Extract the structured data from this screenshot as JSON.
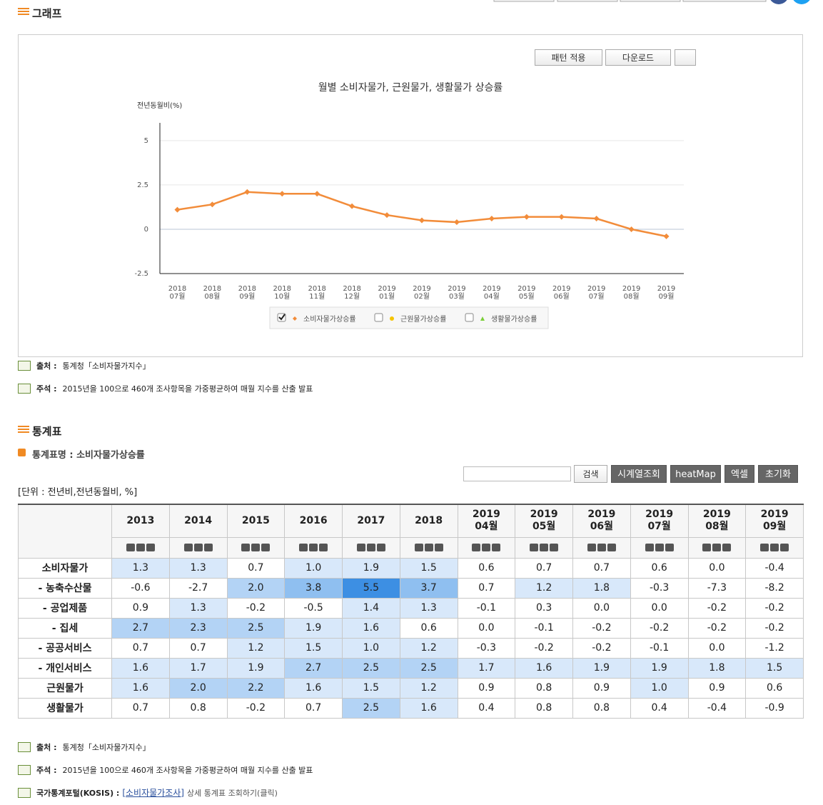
{
  "graph": {
    "title": "그래프",
    "buttons": [
      "패턴 적용",
      "다운로드"
    ],
    "chart_data": {
      "type": "line",
      "title": "월별 소비자물가, 근원물가, 생활물가 상승률",
      "y_label": "전년동월비(%)",
      "categories": [
        [
          "2018",
          "07월"
        ],
        [
          "2018",
          "08월"
        ],
        [
          "2018",
          "09월"
        ],
        [
          "2018",
          "10월"
        ],
        [
          "2018",
          "11월"
        ],
        [
          "2018",
          "12월"
        ],
        [
          "2019",
          "01월"
        ],
        [
          "2019",
          "02월"
        ],
        [
          "2019",
          "03월"
        ],
        [
          "2019",
          "04월"
        ],
        [
          "2019",
          "05월"
        ],
        [
          "2019",
          "06월"
        ],
        [
          "2019",
          "07월"
        ],
        [
          "2019",
          "08월"
        ],
        [
          "2019",
          "09월"
        ]
      ],
      "series": [
        {
          "name": "소비자물가상승률",
          "color": "#f28c3a",
          "values": [
            1.1,
            1.4,
            2.1,
            2.0,
            2.0,
            1.3,
            0.8,
            0.5,
            0.4,
            0.6,
            0.7,
            0.7,
            0.6,
            0.0,
            -0.4
          ]
        }
      ],
      "legend": [
        {
          "name": "소비자물가상승률",
          "color": "#f28c3a",
          "marker": "diamond",
          "checked": true
        },
        {
          "name": "근원물가상승률",
          "color": "#f5c400",
          "marker": "circle",
          "checked": false
        },
        {
          "name": "생활물가상승률",
          "color": "#7ccf3a",
          "marker": "triangle",
          "checked": false
        }
      ],
      "ylim": [
        -2.5,
        6
      ],
      "yticks": [
        -2.5,
        0,
        2.5,
        5
      ],
      "grid": true
    },
    "footnotes": [
      {
        "label": "출처 :",
        "text": "통계청「소비자물가지수」"
      },
      {
        "label": "주석 :",
        "text": "2015년을 100으로 460개 조사항목을 가중평균하여 매월 지수를 산출 발표"
      }
    ]
  },
  "table_section": {
    "title": "통계표",
    "table_name": "통계표명 : 소비자물가상승률",
    "buttons": [
      "검색",
      "시계열조회",
      "heatMap",
      "엑셀",
      "초기화"
    ],
    "unit": "[단위 : 전년비,전년동월비, %]",
    "table": {
      "columns": [
        [
          "2013"
        ],
        [
          "2014"
        ],
        [
          "2015"
        ],
        [
          "2016"
        ],
        [
          "2017"
        ],
        [
          "2018"
        ],
        [
          "2019",
          "04월"
        ],
        [
          "2019",
          "05월"
        ],
        [
          "2019",
          "06월"
        ],
        [
          "2019",
          "07월"
        ],
        [
          "2019",
          "08월"
        ],
        [
          "2019",
          "09월"
        ]
      ],
      "rows": [
        {
          "label": "소비자물가",
          "values": [
            "1.3",
            "1.3",
            "0.7",
            "1.0",
            "1.9",
            "1.5",
            "0.6",
            "0.7",
            "0.7",
            "0.6",
            "0.0",
            "-0.4"
          ],
          "colors": [
            "#d8e8fa",
            "#d8e8fa",
            "#ffffff",
            "#d8e8fa",
            "#d8e8fa",
            "#d8e8fa",
            "#ffffff",
            "#ffffff",
            "#ffffff",
            "#ffffff",
            "#ffffff",
            "#ffffff"
          ]
        },
        {
          "label": "- 농축수산물",
          "values": [
            "-0.6",
            "-2.7",
            "2.0",
            "3.8",
            "5.5",
            "3.7",
            "0.7",
            "1.2",
            "1.8",
            "-0.3",
            "-7.3",
            "-8.2"
          ],
          "colors": [
            "#ffffff",
            "#ffffff",
            "#b3d3f5",
            "#8fbff0",
            "#3d8fe3",
            "#8fbff0",
            "#ffffff",
            "#d8e8fa",
            "#d8e8fa",
            "#ffffff",
            "#ffffff",
            "#ffffff"
          ]
        },
        {
          "label": "- 공업제품",
          "values": [
            "0.9",
            "1.3",
            "-0.2",
            "-0.5",
            "1.4",
            "1.3",
            "-0.1",
            "0.3",
            "0.0",
            "0.0",
            "-0.2",
            "-0.2"
          ],
          "colors": [
            "#ffffff",
            "#d8e8fa",
            "#ffffff",
            "#ffffff",
            "#d8e8fa",
            "#d8e8fa",
            "#ffffff",
            "#ffffff",
            "#ffffff",
            "#ffffff",
            "#ffffff",
            "#ffffff"
          ]
        },
        {
          "label": "- 집세",
          "values": [
            "2.7",
            "2.3",
            "2.5",
            "1.9",
            "1.6",
            "0.6",
            "0.0",
            "-0.1",
            "-0.2",
            "-0.2",
            "-0.2",
            "-0.2"
          ],
          "colors": [
            "#b3d3f5",
            "#b3d3f5",
            "#b3d3f5",
            "#d8e8fa",
            "#d8e8fa",
            "#ffffff",
            "#ffffff",
            "#ffffff",
            "#ffffff",
            "#ffffff",
            "#ffffff",
            "#ffffff"
          ]
        },
        {
          "label": "- 공공서비스",
          "values": [
            "0.7",
            "0.7",
            "1.2",
            "1.5",
            "1.0",
            "1.2",
            "-0.3",
            "-0.2",
            "-0.2",
            "-0.1",
            "0.0",
            "-1.2"
          ],
          "colors": [
            "#ffffff",
            "#ffffff",
            "#d8e8fa",
            "#d8e8fa",
            "#d8e8fa",
            "#d8e8fa",
            "#ffffff",
            "#ffffff",
            "#ffffff",
            "#ffffff",
            "#ffffff",
            "#ffffff"
          ]
        },
        {
          "label": "- 개인서비스",
          "values": [
            "1.6",
            "1.7",
            "1.9",
            "2.7",
            "2.5",
            "2.5",
            "1.7",
            "1.6",
            "1.9",
            "1.9",
            "1.8",
            "1.5"
          ],
          "colors": [
            "#d8e8fa",
            "#d8e8fa",
            "#d8e8fa",
            "#b3d3f5",
            "#b3d3f5",
            "#b3d3f5",
            "#d8e8fa",
            "#d8e8fa",
            "#d8e8fa",
            "#d8e8fa",
            "#d8e8fa",
            "#d8e8fa"
          ]
        },
        {
          "label": "근원물가",
          "values": [
            "1.6",
            "2.0",
            "2.2",
            "1.6",
            "1.5",
            "1.2",
            "0.9",
            "0.8",
            "0.9",
            "1.0",
            "0.9",
            "0.6"
          ],
          "colors": [
            "#d8e8fa",
            "#b3d3f5",
            "#b3d3f5",
            "#d8e8fa",
            "#d8e8fa",
            "#d8e8fa",
            "#ffffff",
            "#ffffff",
            "#ffffff",
            "#d8e8fa",
            "#ffffff",
            "#ffffff"
          ]
        },
        {
          "label": "생활물가",
          "values": [
            "0.7",
            "0.8",
            "-0.2",
            "0.7",
            "2.5",
            "1.6",
            "0.4",
            "0.8",
            "0.8",
            "0.4",
            "-0.4",
            "-0.9"
          ],
          "colors": [
            "#ffffff",
            "#ffffff",
            "#ffffff",
            "#ffffff",
            "#b3d3f5",
            "#d8e8fa",
            "#ffffff",
            "#ffffff",
            "#ffffff",
            "#ffffff",
            "#ffffff",
            "#ffffff"
          ]
        }
      ]
    },
    "footnotes": [
      {
        "label": "출처 :",
        "text": "통계청「소비자물가지수」"
      },
      {
        "label": "주석 :",
        "text": "2015년을 100으로 460개 조사항목을 가중평균하여 매월 지수를 산출 발표"
      }
    ],
    "kosis": {
      "label": "국가통계포털(KOSIS) :",
      "link": "[소비자물가조사]",
      "text": "상세 통계표 조회하기(클릭)"
    }
  }
}
